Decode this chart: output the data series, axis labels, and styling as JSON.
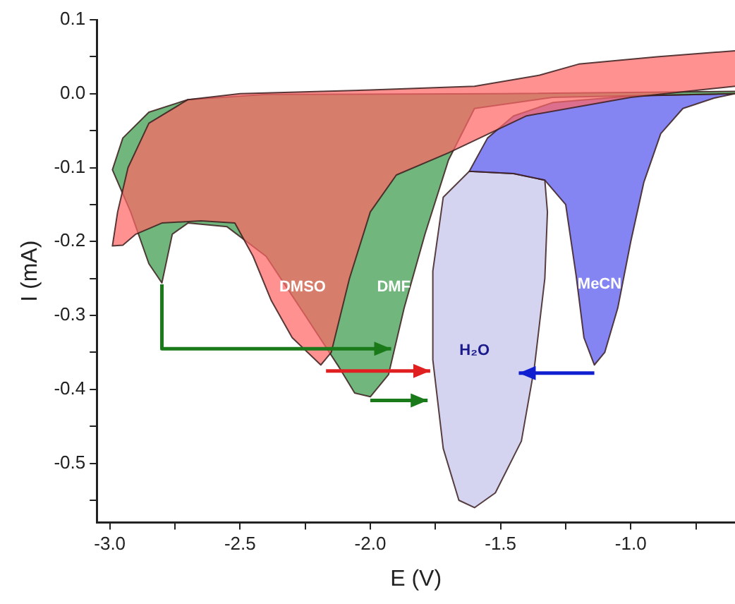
{
  "chart_data": {
    "type": "area",
    "xlabel": "E (V)",
    "ylabel": "I (mA)",
    "xlim": [
      -3.05,
      -0.6
    ],
    "ylim": [
      -0.58,
      0.1
    ],
    "xticks": [
      {
        "value": -3.0,
        "label": "-3.0"
      },
      {
        "value": -2.75,
        "label": null
      },
      -2.5,
      {
        "value": -2.25,
        "label": null
      },
      {
        "value": -2.0,
        "label": "-2.0"
      },
      {
        "value": -1.75,
        "label": null
      },
      -1.5,
      {
        "value": -1.25,
        "label": null
      },
      {
        "value": -1.0,
        "label": "-1.0"
      },
      {
        "value": -0.75,
        "label": null
      }
    ],
    "yticks": [
      0.1,
      {
        "value": 0.05,
        "label": null
      },
      {
        "value": 0,
        "label": "0.0"
      },
      {
        "value": -0.05,
        "label": null
      },
      -0.1,
      {
        "value": -0.15,
        "label": null
      },
      -0.2,
      {
        "value": -0.25,
        "label": null
      },
      -0.3,
      {
        "value": -0.35,
        "label": null
      },
      -0.4,
      {
        "value": -0.45,
        "label": null
      },
      -0.5,
      {
        "value": -0.55,
        "label": null
      }
    ],
    "series": [
      {
        "name": "DMSO",
        "color": "#ff6666",
        "x": [
          -0.6,
          -0.9,
          -1.2,
          -1.35,
          -1.6,
          -2.0,
          -2.5,
          -2.7,
          -2.85,
          -2.93,
          -2.97,
          -2.99,
          -2.95,
          -2.9,
          -2.8,
          -2.65,
          -2.52,
          -2.45,
          -2.38,
          -2.3,
          -2.19,
          -2.15,
          -2.08,
          -2.0,
          -1.9,
          -1.7,
          -1.4,
          -1.0,
          -0.6
        ],
        "values": [
          0.058,
          0.05,
          0.04,
          0.025,
          0.01,
          0.005,
          0.0,
          -0.008,
          -0.04,
          -0.1,
          -0.16,
          -0.206,
          -0.205,
          -0.19,
          -0.175,
          -0.172,
          -0.175,
          -0.22,
          -0.28,
          -0.33,
          -0.367,
          -0.35,
          -0.25,
          -0.16,
          -0.11,
          -0.08,
          -0.03,
          -0.005,
          0.01
        ]
      },
      {
        "name": "DMF",
        "color": "#3a9a4a",
        "x": [
          -0.6,
          -1.3,
          -1.6,
          -1.7,
          -1.79,
          -1.87,
          -1.93,
          -2.0,
          -2.06,
          -2.12,
          -2.25,
          -2.4,
          -2.55,
          -2.7,
          -2.76,
          -2.8,
          -2.85,
          -2.92,
          -2.99,
          -2.95,
          -2.85,
          -2.7,
          -2.4,
          -1.5,
          -0.6
        ],
        "values": [
          0.0,
          -0.005,
          -0.02,
          -0.09,
          -0.19,
          -0.29,
          -0.38,
          -0.41,
          -0.405,
          -0.37,
          -0.3,
          -0.22,
          -0.18,
          -0.175,
          -0.19,
          -0.256,
          -0.23,
          -0.16,
          -0.103,
          -0.06,
          -0.025,
          -0.008,
          -0.001,
          0.0,
          0.003
        ]
      },
      {
        "name": "MeCN",
        "color": "#5555ee",
        "x": [
          -0.6,
          -0.68,
          -0.8,
          -0.885,
          -0.95,
          -1.0,
          -1.05,
          -1.1,
          -1.14,
          -1.18,
          -1.21,
          -1.25,
          -1.33,
          -1.45,
          -1.62,
          -1.55,
          -1.45,
          -1.3,
          -1.0,
          -0.6
        ],
        "values": [
          0.0,
          -0.006,
          -0.02,
          -0.054,
          -0.12,
          -0.2,
          -0.29,
          -0.35,
          -0.367,
          -0.33,
          -0.246,
          -0.15,
          -0.117,
          -0.108,
          -0.105,
          -0.06,
          -0.03,
          -0.012,
          -0.003,
          0.0
        ]
      },
      {
        "name": "H₂O",
        "color": "#c4c4ea",
        "x": [
          -1.62,
          -1.45,
          -1.33,
          -1.32,
          -1.33,
          -1.37,
          -1.42,
          -1.52,
          -1.6,
          -1.66,
          -1.72,
          -1.76,
          -1.76,
          -1.72,
          -1.62
        ],
        "values": [
          -0.105,
          -0.108,
          -0.117,
          -0.16,
          -0.25,
          -0.37,
          -0.47,
          -0.54,
          -0.56,
          -0.55,
          -0.48,
          -0.36,
          -0.24,
          -0.14,
          -0.105
        ]
      }
    ]
  }
}
